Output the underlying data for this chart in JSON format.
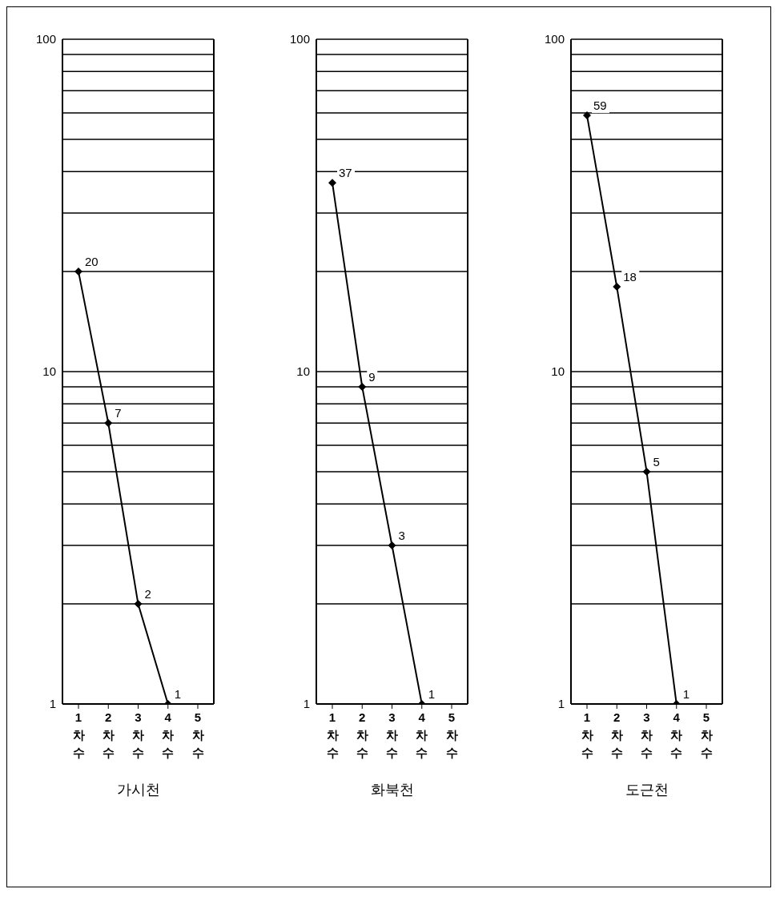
{
  "chart_data": [
    {
      "type": "line",
      "xlabel": "가시천",
      "categories": [
        "1차수",
        "2차수",
        "3차수",
        "4차수",
        "5차수"
      ],
      "series": [
        {
          "color": "#000000",
          "values": [
            20,
            7,
            2,
            1,
            null
          ]
        }
      ],
      "log": "y",
      "ylim": [
        1,
        100
      ],
      "yticks": [
        1,
        {
          "value": 2,
          "label": null
        },
        {
          "value": 3,
          "label": null
        },
        {
          "value": 4,
          "label": null
        },
        {
          "value": 5,
          "label": null
        },
        {
          "value": 6,
          "label": null
        },
        {
          "value": 7,
          "label": null
        },
        {
          "value": 8,
          "label": null
        },
        {
          "value": 9,
          "label": null
        },
        10,
        {
          "value": 20,
          "label": null
        },
        {
          "value": 30,
          "label": null
        },
        {
          "value": 40,
          "label": null
        },
        {
          "value": 50,
          "label": null
        },
        {
          "value": 60,
          "label": null
        },
        {
          "value": 70,
          "label": null
        },
        {
          "value": 80,
          "label": null
        },
        {
          "value": 90,
          "label": null
        },
        100
      ],
      "grid": "y",
      "marker": "diamond",
      "data_labels": true
    },
    {
      "type": "line",
      "xlabel": "화북천",
      "categories": [
        "1차수",
        "2차수",
        "3차수",
        "4차수",
        "5차수"
      ],
      "series": [
        {
          "color": "#000000",
          "values": [
            37,
            9,
            3,
            1,
            null
          ]
        }
      ],
      "log": "y",
      "ylim": [
        1,
        100
      ],
      "yticks": [
        1,
        {
          "value": 2,
          "label": null
        },
        {
          "value": 3,
          "label": null
        },
        {
          "value": 4,
          "label": null
        },
        {
          "value": 5,
          "label": null
        },
        {
          "value": 6,
          "label": null
        },
        {
          "value": 7,
          "label": null
        },
        {
          "value": 8,
          "label": null
        },
        {
          "value": 9,
          "label": null
        },
        10,
        {
          "value": 20,
          "label": null
        },
        {
          "value": 30,
          "label": null
        },
        {
          "value": 40,
          "label": null
        },
        {
          "value": 50,
          "label": null
        },
        {
          "value": 60,
          "label": null
        },
        {
          "value": 70,
          "label": null
        },
        {
          "value": 80,
          "label": null
        },
        {
          "value": 90,
          "label": null
        },
        100
      ],
      "grid": "y",
      "marker": "diamond",
      "data_labels": true
    },
    {
      "type": "line",
      "xlabel": "도근천",
      "categories": [
        "1차수",
        "2차수",
        "3차수",
        "4차수",
        "5차수"
      ],
      "series": [
        {
          "color": "#000000",
          "values": [
            59,
            18,
            5,
            1,
            null
          ]
        }
      ],
      "log": "y",
      "ylim": [
        1,
        100
      ],
      "yticks": [
        1,
        {
          "value": 2,
          "label": null
        },
        {
          "value": 3,
          "label": null
        },
        {
          "value": 4,
          "label": null
        },
        {
          "value": 5,
          "label": null
        },
        {
          "value": 6,
          "label": null
        },
        {
          "value": 7,
          "label": null
        },
        {
          "value": 8,
          "label": null
        },
        {
          "value": 9,
          "label": null
        },
        10,
        {
          "value": 20,
          "label": null
        },
        {
          "value": 30,
          "label": null
        },
        {
          "value": 40,
          "label": null
        },
        {
          "value": 50,
          "label": null
        },
        {
          "value": 60,
          "label": null
        },
        {
          "value": 70,
          "label": null
        },
        {
          "value": 80,
          "label": null
        },
        {
          "value": 90,
          "label": null
        },
        100
      ],
      "grid": "y",
      "marker": "diamond",
      "data_labels": true
    }
  ]
}
